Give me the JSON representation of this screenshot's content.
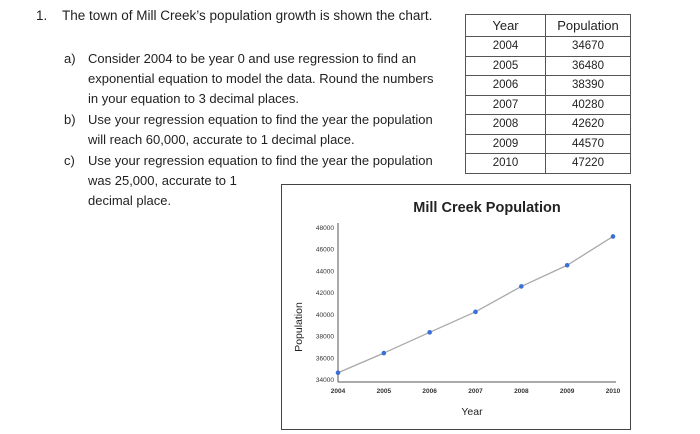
{
  "question": {
    "number": "1.",
    "heading": "The town of Mill Creek’s population growth is shown the chart.",
    "parts": [
      {
        "label": "a)",
        "lines": [
          "Consider 2004 to be year 0 and use regression to find an",
          "exponential equation to model the data.  Round the numbers",
          "in your equation to 3 decimal places."
        ]
      },
      {
        "label": "b)",
        "lines": [
          "Use your regression equation to find the year the population",
          "will reach 60,000, accurate to 1 decimal place."
        ]
      },
      {
        "label": "c)",
        "lines": [
          "Use your regression equation to find the year the population",
          "was 25,000, accurate to 1",
          "decimal place."
        ]
      }
    ]
  },
  "table": {
    "headers": [
      "Year",
      "Population"
    ],
    "rows": [
      [
        "2004",
        "34670"
      ],
      [
        "2005",
        "36480"
      ],
      [
        "2006",
        "38390"
      ],
      [
        "2007",
        "40280"
      ],
      [
        "2008",
        "42620"
      ],
      [
        "2009",
        "44570"
      ],
      [
        "2010",
        "47220"
      ]
    ]
  },
  "chart_data": {
    "type": "line",
    "title": "Mill Creek Population",
    "xlabel": "Year",
    "ylabel": "Population",
    "x": [
      2004,
      2005,
      2006,
      2007,
      2008,
      2009,
      2010
    ],
    "series": [
      {
        "values": [
          34670,
          36480,
          38390,
          40280,
          42620,
          44570,
          47220
        ]
      }
    ],
    "x_ticks": [
      "2004",
      "2005",
      "2006",
      "2007",
      "2008",
      "2009",
      "2010"
    ],
    "y_ticks": [
      "34000",
      "36000",
      "38000",
      "40000",
      "42000",
      "44000",
      "46000",
      "48000"
    ],
    "y_tick_values": [
      34000,
      36000,
      38000,
      40000,
      42000,
      44000,
      46000,
      48000
    ],
    "xlim": [
      2004,
      2010
    ],
    "ylim": [
      34000,
      48000
    ],
    "grid": false,
    "line_color": "#a9a9a9",
    "marker_color": "#3a6fd8"
  }
}
